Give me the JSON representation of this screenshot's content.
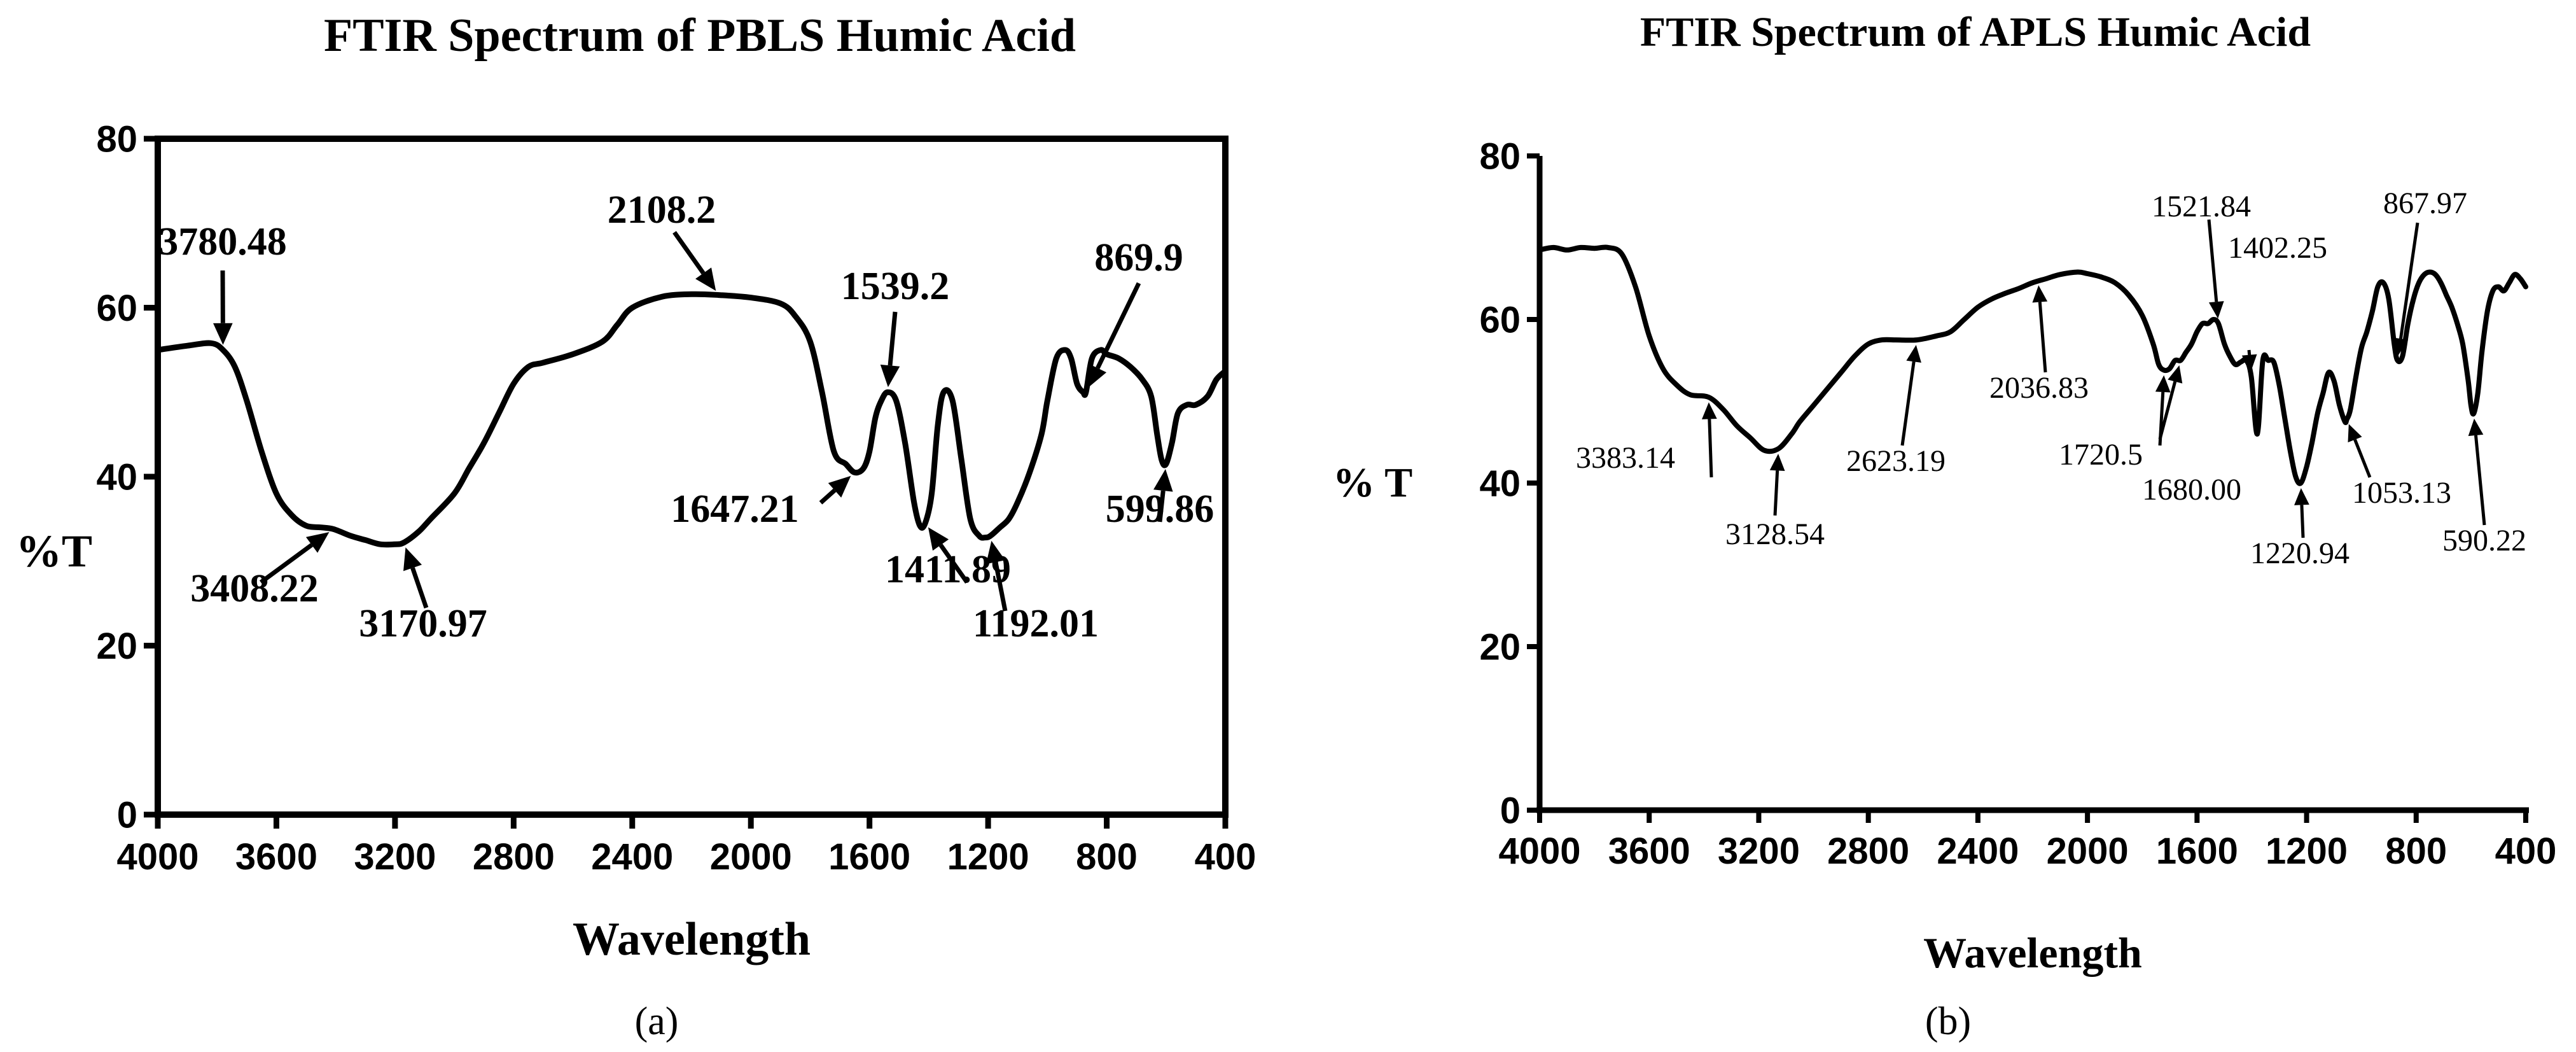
{
  "chart_data": [
    {
      "type": "line",
      "panel": "a",
      "title": "FTIR Spectrum of PBLS Humic Acid",
      "xlabel": "Wavelength",
      "ylabel": "%T",
      "xlim": [
        4000,
        400
      ],
      "ylim": [
        0,
        80
      ],
      "x_ticks": [
        "4000",
        "3600",
        "3200",
        "2800",
        "2400",
        "2000",
        "1600",
        "1200",
        "800",
        "400"
      ],
      "y_ticks": [
        "0",
        "20",
        "40",
        "60",
        "80"
      ],
      "grid": false,
      "series": [
        {
          "x": [
            4000,
            3900,
            3820,
            3780,
            3740,
            3700,
            3650,
            3600,
            3550,
            3500,
            3450,
            3408,
            3350,
            3300,
            3250,
            3200,
            3170,
            3120,
            3080,
            3000,
            2950,
            2900,
            2850,
            2800,
            2750,
            2700,
            2600,
            2500,
            2450,
            2400,
            2300,
            2200,
            2108,
            2000,
            1900,
            1850,
            1800,
            1760,
            1720,
            1680,
            1650,
            1620,
            1600,
            1580,
            1560,
            1539,
            1510,
            1480,
            1450,
            1430,
            1412,
            1390,
            1370,
            1350,
            1320,
            1290,
            1260,
            1230,
            1210,
            1192,
            1160,
            1130,
            1100,
            1060,
            1020,
            1000,
            970,
            940,
            920,
            900,
            880,
            870,
            850,
            820,
            800,
            760,
            720,
            680,
            650,
            630,
            615,
            600,
            580,
            560,
            530,
            500,
            460,
            430,
            400
          ],
          "y": [
            55,
            55.5,
            55.8,
            55,
            53,
            49,
            43,
            38,
            35.5,
            34.2,
            34,
            33.8,
            33,
            32.5,
            32,
            32,
            32.2,
            33.5,
            35,
            38,
            41,
            44,
            47.5,
            51,
            53,
            53.5,
            54.5,
            56,
            58,
            60,
            61.3,
            61.6,
            61.5,
            61.2,
            60.5,
            59,
            56,
            50,
            43,
            41.5,
            40.5,
            41,
            43,
            47,
            49,
            50,
            49,
            44,
            37,
            34.2,
            34.5,
            38,
            46,
            50,
            49,
            42,
            35,
            33,
            32.8,
            33,
            34,
            35,
            37,
            40.5,
            45,
            49,
            54,
            55,
            54,
            51,
            50,
            50,
            54,
            55,
            54.5,
            54,
            53,
            51.5,
            49.5,
            45,
            42,
            41.5,
            44,
            47.5,
            48.5,
            48.5,
            49.5,
            51.5,
            52.5
          ]
        }
      ],
      "annotations": [
        {
          "label": "3780.48",
          "x": 3780,
          "y": 55
        },
        {
          "label": "3408.22",
          "x": 3408,
          "y": 33.8
        },
        {
          "label": "3170.97",
          "x": 3170,
          "y": 32.2
        },
        {
          "label": "2108.2",
          "x": 2108,
          "y": 61.5
        },
        {
          "label": "1647.21",
          "x": 1650,
          "y": 40.5
        },
        {
          "label": "1539.2",
          "x": 1539,
          "y": 50
        },
        {
          "label": "1411.89",
          "x": 1412,
          "y": 34.5
        },
        {
          "label": "1192.01",
          "x": 1192,
          "y": 33
        },
        {
          "label": "869.9",
          "x": 870,
          "y": 50
        },
        {
          "label": "599.86",
          "x": 600,
          "y": 41.5
        }
      ],
      "panel_label": "(a)"
    },
    {
      "type": "line",
      "panel": "b",
      "title": "FTIR Spectrum of APLS Humic Acid",
      "xlabel": "Wavelength",
      "ylabel": "% T",
      "xlim": [
        4000,
        400
      ],
      "ylim": [
        0,
        80
      ],
      "x_ticks": [
        "4000",
        "3600",
        "3200",
        "2800",
        "2400",
        "2000",
        "1600",
        "1200",
        "800",
        "400"
      ],
      "y_ticks": [
        "0",
        "20",
        "40",
        "60",
        "80"
      ],
      "grid": false,
      "series": [
        {
          "x": [
            4000,
            3950,
            3900,
            3850,
            3800,
            3750,
            3700,
            3650,
            3600,
            3550,
            3500,
            3450,
            3383,
            3330,
            3280,
            3230,
            3180,
            3128,
            3080,
            3050,
            3000,
            2950,
            2900,
            2850,
            2800,
            2750,
            2700,
            2623,
            2550,
            2500,
            2450,
            2400,
            2350,
            2300,
            2250,
            2200,
            2150,
            2100,
            2036,
            2000,
            1950,
            1900,
            1850,
            1800,
            1760,
            1740,
            1720,
            1700,
            1680,
            1660,
            1640,
            1620,
            1600,
            1580,
            1560,
            1540,
            1522,
            1500,
            1480,
            1460,
            1440,
            1420,
            1402,
            1380,
            1360,
            1340,
            1320,
            1300,
            1280,
            1260,
            1240,
            1221,
            1200,
            1180,
            1160,
            1140,
            1120,
            1100,
            1080,
            1060,
            1053,
            1040,
            1020,
            1000,
            980,
            960,
            940,
            920,
            900,
            880,
            868,
            850,
            830,
            810,
            790,
            770,
            750,
            730,
            710,
            690,
            670,
            650,
            630,
            610,
            600,
            590,
            575,
            560,
            540,
            520,
            500,
            480,
            460,
            440,
            420,
            400
          ],
          "y": [
            68.5,
            68.8,
            68.5,
            68.8,
            68.7,
            68.8,
            68,
            64,
            58,
            54,
            52,
            50.8,
            50.5,
            49,
            47,
            45.5,
            44,
            44.2,
            46,
            47.5,
            49.5,
            51.5,
            53.5,
            55.5,
            57,
            57.5,
            57.5,
            57.5,
            58,
            58.5,
            60,
            61.5,
            62.5,
            63.2,
            63.8,
            64.5,
            65,
            65.5,
            65.8,
            65.6,
            65.2,
            64.5,
            63,
            60.5,
            57,
            54.5,
            53.8,
            54,
            55,
            55,
            56,
            57,
            58.5,
            59.5,
            59.5,
            60,
            59.5,
            57,
            55.5,
            54.5,
            54.8,
            55,
            53,
            46,
            55,
            55,
            54.8,
            52,
            48,
            44,
            40.8,
            40,
            42,
            45,
            48.5,
            51,
            53.5,
            52.5,
            49.5,
            47.5,
            47.8,
            49,
            53,
            56.5,
            58.5,
            61,
            64,
            64.5,
            62.5,
            57,
            55,
            55.5,
            59.5,
            62.5,
            64.5,
            65.5,
            65.8,
            65.5,
            64.5,
            63,
            61.5,
            59.5,
            57,
            52.5,
            49.5,
            48.5,
            51,
            56,
            61,
            63.5,
            64,
            63.5,
            64.5,
            65.5,
            65,
            64
          ]
        }
      ],
      "annotations": [
        {
          "label": "3383.14",
          "x": 3383,
          "y": 50.5
        },
        {
          "label": "3128.54",
          "x": 3128,
          "y": 44.2
        },
        {
          "label": "2623.19",
          "x": 2623,
          "y": 57.5
        },
        {
          "label": "2036.83",
          "x": 2180,
          "y": 64.8
        },
        {
          "label": "1720.5",
          "x": 1720,
          "y": 53.8
        },
        {
          "label": "1680.00",
          "x": 1660,
          "y": 55
        },
        {
          "label": "1521.84",
          "x": 1522,
          "y": 59.5
        },
        {
          "label": "1402.25",
          "x": 1402,
          "y": 53
        },
        {
          "label": "1220.94",
          "x": 1221,
          "y": 40
        },
        {
          "label": "1053.13",
          "x": 1053,
          "y": 47.8
        },
        {
          "label": "867.97",
          "x": 868,
          "y": 55
        },
        {
          "label": "590.22",
          "x": 590,
          "y": 48.5
        }
      ],
      "panel_label": "(b)"
    }
  ]
}
